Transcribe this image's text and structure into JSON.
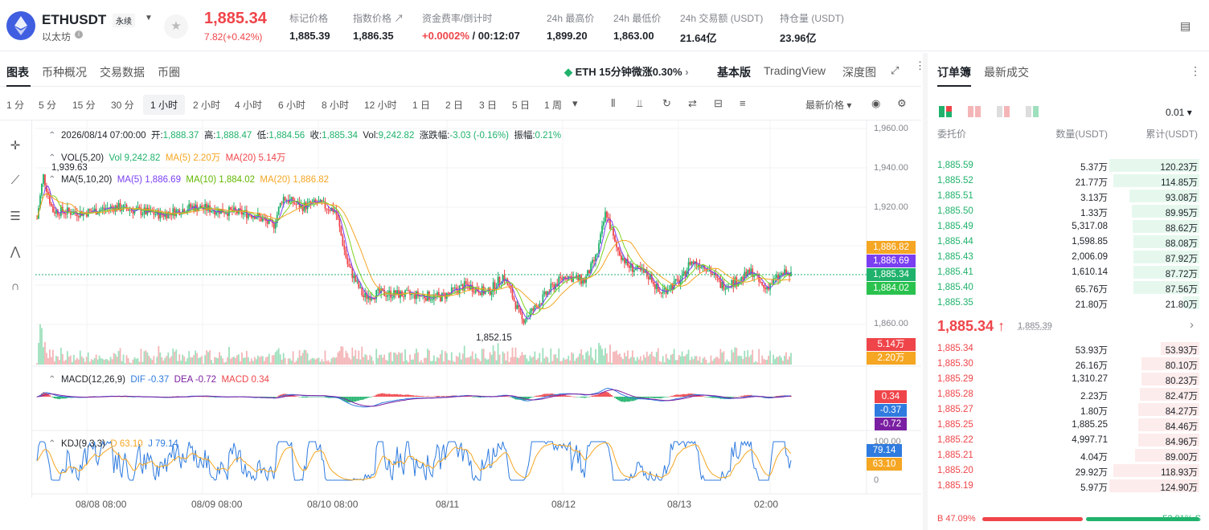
{
  "header": {
    "symbol": "ETHUSDT",
    "perp_badge": "永续",
    "coin_name": "以太坊",
    "last_price": "1,885.34",
    "change": "7.82(+0.42%)",
    "stats": [
      {
        "label": "标记价格",
        "value": "1,885.39"
      },
      {
        "label": "指数价格 ↗",
        "value": "1,886.35"
      },
      {
        "label": "资金费率/倒计时",
        "value": "+0.0002%",
        "value2": "/ 00:12:07"
      },
      {
        "label": "24h 最高价",
        "value": "1,899.20"
      },
      {
        "label": "24h 最低价",
        "value": "1,863.00"
      },
      {
        "label": "24h 交易额 (USDT)",
        "value": "21.64亿"
      },
      {
        "label": "持仓量 (USDT)",
        "value": "23.96亿"
      }
    ]
  },
  "tabs": [
    "图表",
    "币种概况",
    "交易数据",
    "币圈"
  ],
  "promo": "ETH 15分钟微涨0.30%",
  "views": [
    "基本版",
    "TradingView",
    "深度图"
  ],
  "timeframes": [
    "1 分",
    "5 分",
    "15 分",
    "30 分",
    "1 小时",
    "2 小时",
    "4 小时",
    "6 小时",
    "8 小时",
    "12 小时",
    "1 日",
    "2 日",
    "3 日",
    "5 日",
    "1 周"
  ],
  "active_timeframe": "1 小时",
  "price_type": "最新价格",
  "legend": {
    "date": "2026/08/14 07:00:00",
    "open_l": "开:",
    "open": "1,888.37",
    "high_l": "高:",
    "high": "1,888.47",
    "low_l": "低:",
    "low": "1,884.56",
    "close_l": "收:",
    "close": "1,885.34",
    "vol_l": "Vol:",
    "vol": "9,242.82",
    "chg_l": "涨跌幅:",
    "chg": "-3.03 (-0.16%)",
    "amp_l": "振幅:",
    "amp": "0.21%"
  },
  "vol_legend": {
    "name": "VOL(5,20)",
    "vol": "Vol 9,242.82",
    "ma5": "MA(5) 2.20万",
    "ma20": "MA(20) 5.14万"
  },
  "ma_legend": {
    "name": "MA(5,10,20)",
    "ma5": "MA(5) 1,886.69",
    "ma10": "MA(10) 1,884.02",
    "ma20": "MA(20) 1,886.82"
  },
  "macd_legend": {
    "name": "MACD(12,26,9)",
    "dif": "DIF -0.37",
    "dea": "DEA -0.72",
    "macd": "MACD 0.34"
  },
  "kdj_legend": {
    "name": "KDJ(9,3,3)",
    "d": "D 63.10",
    "j": "J 79.14"
  },
  "y_axis": [
    "1,960.00",
    "1,940.00",
    "1,920.00",
    "1,860.00"
  ],
  "kdj_axis": [
    "100.00",
    "0"
  ],
  "x_axis": [
    "08/08 08:00",
    "08/09 08:00",
    "08/10 08:00",
    "08/11",
    "08/12",
    "08/13",
    "02:00"
  ],
  "price_tags": {
    "ma20": "1,886.82",
    "ma5": "1,886.69",
    "last": "1,885.34",
    "ma10": "1,884.02",
    "vol_ma20": "5.14万",
    "vol_ma5": "2.20万",
    "macd": "0.34",
    "dif": "-0.37",
    "dea": "-0.72",
    "kdj_j": "79.14",
    "kdj_d": "63.10"
  },
  "annotations": {
    "high": "1,939.63",
    "low": "1,852.15"
  },
  "colors": {
    "up": "#20b26c",
    "down": "#ef454a",
    "ma5": "#7b3ff2",
    "ma10": "#7ed321",
    "ma20": "#f5a623"
  },
  "orderbook": {
    "tabs": [
      "订单簿",
      "最新成交"
    ],
    "precision": "0.01",
    "headers": [
      "委托价",
      "数量(USDT)",
      "累计(USDT)"
    ],
    "asks": [
      [
        "1,885.59",
        "5.37万",
        "120.23万"
      ],
      [
        "1,885.52",
        "21.77万",
        "114.85万"
      ],
      [
        "1,885.51",
        "3.13万",
        "93.08万"
      ],
      [
        "1,885.50",
        "1.33万",
        "89.95万"
      ],
      [
        "1,885.49",
        "5,317.08",
        "88.62万"
      ],
      [
        "1,885.44",
        "1,598.85",
        "88.08万"
      ],
      [
        "1,885.43",
        "2,006.09",
        "87.92万"
      ],
      [
        "1,885.41",
        "1,610.14",
        "87.72万"
      ],
      [
        "1,885.40",
        "65.76万",
        "87.56万"
      ],
      [
        "1,885.35",
        "21.80万",
        "21.80万"
      ]
    ],
    "ask_cum_ratio": [
      1.0,
      0.955,
      0.774,
      0.748,
      0.737,
      0.733,
      0.731,
      0.73,
      0.728,
      0.181
    ],
    "mid_price": "1,885.34 ↑",
    "mark": "1,885.39",
    "bids": [
      [
        "1,885.34",
        "53.93万",
        "53.93万"
      ],
      [
        "1,885.30",
        "26.16万",
        "80.10万"
      ],
      [
        "1,885.29",
        "1,310.27",
        "80.23万"
      ],
      [
        "1,885.28",
        "2.23万",
        "82.47万"
      ],
      [
        "1,885.27",
        "1.80万",
        "84.27万"
      ],
      [
        "1,885.25",
        "1,885.25",
        "84.46万"
      ],
      [
        "1,885.22",
        "4,997.71",
        "84.96万"
      ],
      [
        "1,885.21",
        "4.04万",
        "89.00万"
      ],
      [
        "1,885.20",
        "29.92万",
        "118.93万"
      ],
      [
        "1,885.19",
        "5.97万",
        "124.90万"
      ]
    ],
    "bid_cum_ratio": [
      0.432,
      0.641,
      0.642,
      0.66,
      0.675,
      0.676,
      0.68,
      0.713,
      0.952,
      1.0
    ],
    "buy_ratio": "B 47.09%",
    "sell_ratio": "52.91% S",
    "buy_pct": 47.09
  }
}
